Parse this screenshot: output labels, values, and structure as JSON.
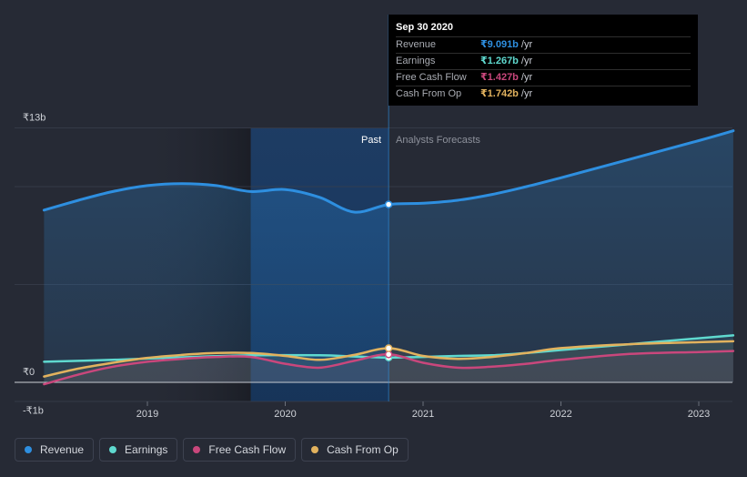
{
  "colors": {
    "revenue": "#2e8fe0",
    "earnings": "#5fd9cf",
    "fcf": "#c9477c",
    "cfo": "#e2b25e",
    "past_shade": "#1a3659"
  },
  "tooltip": {
    "date": "Sep 30 2020",
    "rows": [
      {
        "label": "Revenue",
        "value": "₹9.091b",
        "unit": "/yr"
      },
      {
        "label": "Earnings",
        "value": "₹1.267b",
        "unit": "/yr"
      },
      {
        "label": "Free Cash Flow",
        "value": "₹1.427b",
        "unit": "/yr"
      },
      {
        "label": "Cash From Op",
        "value": "₹1.742b",
        "unit": "/yr"
      }
    ]
  },
  "legend": [
    {
      "label": "Revenue",
      "series": "revenue"
    },
    {
      "label": "Earnings",
      "series": "earnings"
    },
    {
      "label": "Free Cash Flow",
      "series": "fcf"
    },
    {
      "label": "Cash From Op",
      "series": "cfo"
    }
  ],
  "chart_data": {
    "type": "line",
    "region_labels": {
      "past": "Past",
      "forecast": "Analysts Forecasts"
    },
    "y_ticks": [
      {
        "value": 13,
        "label": "₹13b"
      },
      {
        "value": 0,
        "label": "₹0"
      },
      {
        "value": -1,
        "label": "-₹1b"
      }
    ],
    "ylim": [
      -1,
      13
    ],
    "xlim": [
      2018.25,
      2023.25
    ],
    "x_ticks": [
      {
        "value": 2019,
        "label": "2019"
      },
      {
        "value": 2020,
        "label": "2020"
      },
      {
        "value": 2021,
        "label": "2021"
      },
      {
        "value": 2022,
        "label": "2022"
      },
      {
        "value": 2023,
        "label": "2023"
      }
    ],
    "grid": true,
    "past_region": [
      2019.75,
      2020.75
    ],
    "cursor_x": 2020.75,
    "series": [
      {
        "key": "revenue",
        "name": "Revenue",
        "area": true,
        "x": [
          2018.25,
          2018.5,
          2018.75,
          2019.0,
          2019.25,
          2019.5,
          2019.75,
          2020.0,
          2020.25,
          2020.5,
          2020.75,
          2021.0,
          2021.25,
          2021.5,
          2021.75,
          2022.0,
          2022.5,
          2023.0,
          2023.25
        ],
        "y": [
          8.8,
          9.3,
          9.75,
          10.05,
          10.15,
          10.05,
          9.75,
          9.85,
          9.45,
          8.7,
          9.09,
          9.15,
          9.3,
          9.6,
          10.0,
          10.45,
          11.4,
          12.35,
          12.85
        ]
      },
      {
        "key": "earnings",
        "name": "Earnings",
        "x": [
          2018.25,
          2018.75,
          2019.25,
          2019.75,
          2020.25,
          2020.5,
          2020.75,
          2021.0,
          2021.25,
          2021.5,
          2021.75,
          2022.0,
          2022.5,
          2023.0,
          2023.25
        ],
        "y": [
          1.05,
          1.15,
          1.28,
          1.38,
          1.38,
          1.32,
          1.267,
          1.3,
          1.35,
          1.38,
          1.5,
          1.65,
          1.95,
          2.25,
          2.4
        ]
      },
      {
        "key": "fcf",
        "name": "Free Cash Flow",
        "x": [
          2018.25,
          2018.5,
          2018.75,
          2019.0,
          2019.25,
          2019.5,
          2019.75,
          2020.0,
          2020.25,
          2020.5,
          2020.75,
          2021.0,
          2021.25,
          2021.5,
          2021.75,
          2022.0,
          2022.5,
          2023.0,
          2023.25
        ],
        "y": [
          -0.1,
          0.4,
          0.8,
          1.05,
          1.2,
          1.3,
          1.3,
          0.95,
          0.75,
          1.1,
          1.427,
          1.0,
          0.75,
          0.8,
          0.95,
          1.15,
          1.45,
          1.55,
          1.6
        ]
      },
      {
        "key": "cfo",
        "name": "Cash From Op",
        "x": [
          2018.25,
          2018.5,
          2018.75,
          2019.0,
          2019.25,
          2019.5,
          2019.75,
          2020.0,
          2020.25,
          2020.5,
          2020.75,
          2021.0,
          2021.25,
          2021.5,
          2021.75,
          2022.0,
          2022.5,
          2023.0,
          2023.25
        ],
        "y": [
          0.3,
          0.7,
          1.0,
          1.25,
          1.4,
          1.5,
          1.5,
          1.35,
          1.15,
          1.4,
          1.742,
          1.35,
          1.2,
          1.3,
          1.5,
          1.75,
          1.95,
          2.05,
          2.1
        ]
      }
    ]
  }
}
